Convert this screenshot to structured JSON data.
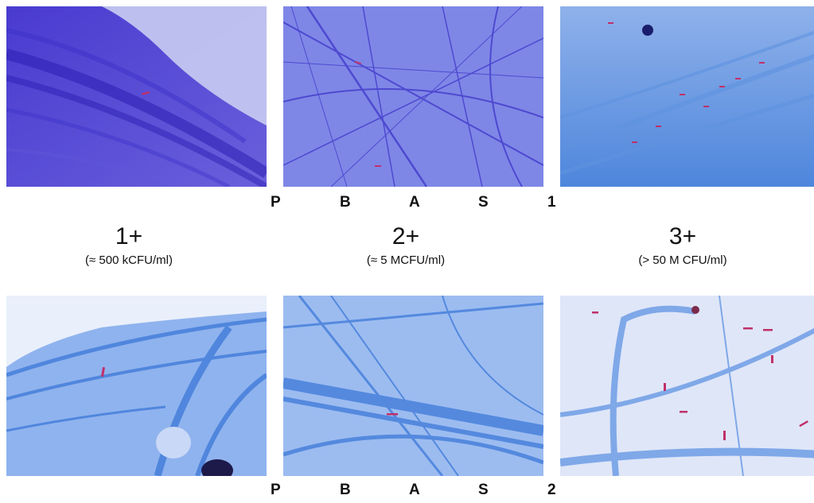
{
  "code_rows": [
    [
      "P",
      "B",
      "A",
      "S",
      "1"
    ],
    [
      "P",
      "B",
      "A",
      "S",
      "2"
    ]
  ],
  "grades": [
    {
      "grade": "1+",
      "concentration": "(≈ 500 kCFU/ml)"
    },
    {
      "grade": "2+",
      "concentration": "(≈ 5 MCFU/ml)"
    },
    {
      "grade": "3+",
      "concentration": "(> 50 M CFU/ml)"
    }
  ],
  "colors": {
    "background": "#ffffff",
    "fiber_dark": "#3a2fc8",
    "fiber_light": "#6f8fe6",
    "bacilli": "#c0306a"
  }
}
